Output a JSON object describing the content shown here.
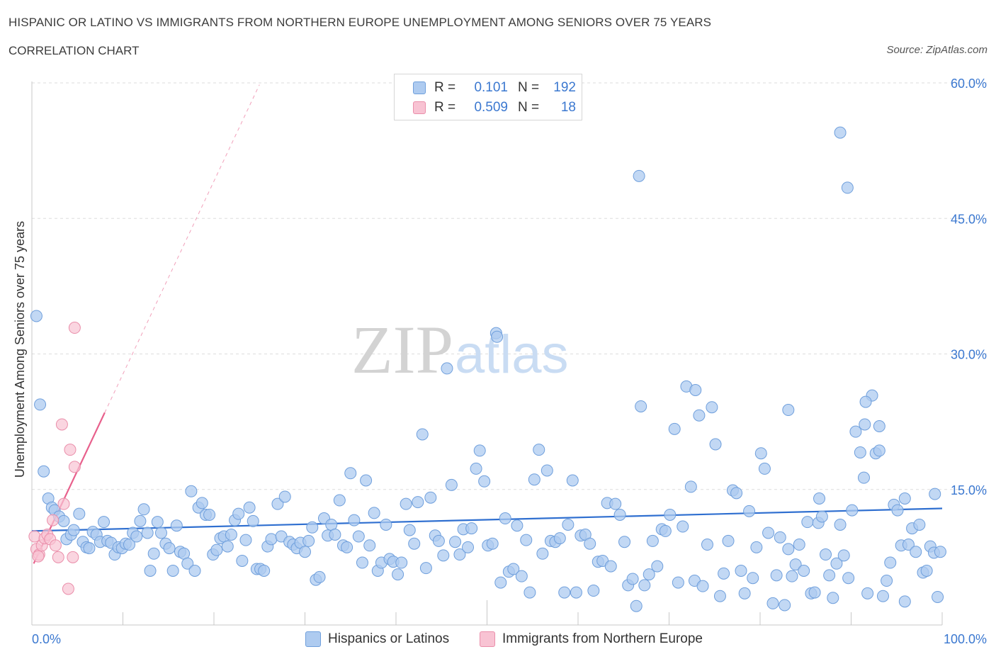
{
  "header": {
    "title": "HISPANIC OR LATINO VS IMMIGRANTS FROM NORTHERN EUROPE UNEMPLOYMENT AMONG SENIORS OVER 75 YEARS",
    "subtitle": "CORRELATION CHART",
    "source": "Source: ZipAtlas.com"
  },
  "watermark": "ZIPatlas",
  "legend": {
    "rows": [
      {
        "r_label": "R =",
        "r_value": "0.101",
        "n_label": "N =",
        "n_value": "192"
      },
      {
        "r_label": "R =",
        "r_value": "0.509",
        "n_label": "N =",
        "n_value": "18"
      }
    ]
  },
  "bottom_legend": {
    "series_a": "Hispanics or Latinos",
    "series_b": "Immigrants from Northern Europe"
  },
  "colors": {
    "blue_fill": "#aecbf0",
    "blue_stroke": "#6f9fdc",
    "blue_line": "#2f6fd0",
    "pink_fill": "#f8c3d3",
    "pink_stroke": "#ea8eaa",
    "pink_line": "#e8608c",
    "axis_text": "#3b78d0",
    "grid": "#dddddd"
  },
  "chart_data": {
    "type": "scatter",
    "title": "HISPANIC OR LATINO VS IMMIGRANTS FROM NORTHERN EUROPE UNEMPLOYMENT AMONG SENIORS OVER 75 YEARS",
    "xlabel": "",
    "ylabel": "Unemployment Among Seniors over 75 years",
    "xlim": [
      0,
      100
    ],
    "ylim": [
      0,
      60
    ],
    "x_tick_labels": [
      "0.0%",
      "100.0%"
    ],
    "y_ticks": [
      15,
      30,
      45,
      60
    ],
    "y_tick_labels": [
      "15.0%",
      "30.0%",
      "45.0%",
      "60.0%"
    ],
    "grid": true,
    "series": [
      {
        "name": "Hispanics or Latinos",
        "R": 0.101,
        "N": 192,
        "trend": {
          "x": [
            0,
            100
          ],
          "y": [
            10.4,
            12.9
          ],
          "dashed_extension": false
        },
        "points": [
          [
            0.5,
            34.2
          ],
          [
            0.9,
            24.4
          ],
          [
            1.3,
            17.0
          ],
          [
            1.8,
            14.0
          ],
          [
            2.2,
            13.0
          ],
          [
            2.5,
            12.7
          ],
          [
            3.0,
            12.0
          ],
          [
            3.5,
            11.5
          ],
          [
            3.8,
            9.5
          ],
          [
            4.3,
            10.0
          ],
          [
            4.6,
            10.5
          ],
          [
            5.2,
            12.3
          ],
          [
            5.6,
            9.2
          ],
          [
            6.0,
            8.6
          ],
          [
            6.3,
            8.5
          ],
          [
            6.7,
            10.3
          ],
          [
            7.1,
            10.0
          ],
          [
            7.5,
            9.2
          ],
          [
            7.9,
            11.4
          ],
          [
            8.3,
            9.3
          ],
          [
            8.7,
            9.1
          ],
          [
            9.1,
            7.8
          ],
          [
            9.5,
            8.6
          ],
          [
            9.9,
            8.5
          ],
          [
            10.3,
            9.0
          ],
          [
            10.7,
            8.9
          ],
          [
            11.1,
            10.2
          ],
          [
            11.5,
            9.8
          ],
          [
            11.9,
            11.5
          ],
          [
            12.3,
            12.8
          ],
          [
            12.7,
            10.2
          ],
          [
            13.0,
            6.0
          ],
          [
            13.4,
            7.9
          ],
          [
            13.8,
            11.4
          ],
          [
            14.2,
            10.2
          ],
          [
            14.7,
            9.0
          ],
          [
            15.1,
            8.5
          ],
          [
            15.5,
            6.0
          ],
          [
            15.9,
            11.0
          ],
          [
            16.3,
            8.1
          ],
          [
            16.7,
            7.9
          ],
          [
            17.1,
            6.8
          ],
          [
            17.5,
            14.8
          ],
          [
            17.9,
            6.0
          ],
          [
            18.3,
            13.0
          ],
          [
            18.7,
            13.5
          ],
          [
            19.1,
            12.2
          ],
          [
            19.5,
            12.2
          ],
          [
            19.9,
            7.8
          ],
          [
            20.3,
            8.3
          ],
          [
            20.7,
            9.6
          ],
          [
            21.1,
            9.8
          ],
          [
            21.5,
            8.7
          ],
          [
            21.9,
            10.0
          ],
          [
            22.3,
            11.6
          ],
          [
            22.7,
            12.3
          ],
          [
            23.1,
            7.1
          ],
          [
            23.5,
            9.4
          ],
          [
            23.9,
            13.0
          ],
          [
            24.3,
            11.5
          ],
          [
            24.7,
            6.2
          ],
          [
            25.1,
            6.2
          ],
          [
            25.5,
            6.0
          ],
          [
            25.9,
            8.7
          ],
          [
            26.3,
            9.5
          ],
          [
            27.0,
            13.4
          ],
          [
            27.4,
            9.8
          ],
          [
            27.8,
            14.2
          ],
          [
            28.3,
            9.2
          ],
          [
            28.7,
            8.9
          ],
          [
            29.1,
            8.5
          ],
          [
            29.5,
            9.1
          ],
          [
            30.0,
            8.1
          ],
          [
            30.4,
            9.3
          ],
          [
            30.8,
            10.8
          ],
          [
            31.2,
            5.0
          ],
          [
            31.6,
            5.3
          ],
          [
            32.1,
            11.8
          ],
          [
            32.5,
            9.9
          ],
          [
            32.9,
            11.1
          ],
          [
            33.3,
            10.0
          ],
          [
            33.8,
            13.8
          ],
          [
            34.2,
            8.8
          ],
          [
            34.6,
            8.6
          ],
          [
            35.0,
            16.8
          ],
          [
            35.4,
            11.6
          ],
          [
            35.9,
            9.8
          ],
          [
            36.3,
            6.9
          ],
          [
            36.7,
            16.0
          ],
          [
            37.1,
            8.8
          ],
          [
            37.6,
            12.4
          ],
          [
            38.0,
            6.0
          ],
          [
            38.4,
            6.9
          ],
          [
            38.9,
            11.1
          ],
          [
            39.3,
            7.3
          ],
          [
            39.7,
            7.0
          ],
          [
            40.2,
            5.6
          ],
          [
            40.6,
            6.9
          ],
          [
            41.1,
            13.4
          ],
          [
            41.5,
            10.5
          ],
          [
            42.0,
            9.0
          ],
          [
            42.4,
            13.6
          ],
          [
            42.9,
            21.1
          ],
          [
            43.3,
            6.3
          ],
          [
            43.8,
            14.1
          ],
          [
            44.3,
            9.9
          ],
          [
            44.7,
            9.3
          ],
          [
            45.2,
            7.7
          ],
          [
            45.6,
            28.4
          ],
          [
            46.1,
            15.5
          ],
          [
            46.5,
            9.2
          ],
          [
            47.0,
            7.8
          ],
          [
            47.4,
            10.6
          ],
          [
            47.9,
            8.6
          ],
          [
            48.3,
            10.7
          ],
          [
            48.8,
            17.3
          ],
          [
            49.2,
            19.3
          ],
          [
            49.7,
            15.9
          ],
          [
            50.1,
            8.8
          ],
          [
            50.6,
            9.0
          ],
          [
            51.0,
            32.3
          ],
          [
            51.5,
            4.7
          ],
          [
            52.0,
            11.8
          ],
          [
            52.4,
            5.9
          ],
          [
            52.9,
            6.2
          ],
          [
            53.3,
            11.0
          ],
          [
            53.8,
            5.4
          ],
          [
            54.3,
            9.4
          ],
          [
            54.7,
            3.6
          ],
          [
            55.2,
            16.1
          ],
          [
            55.7,
            19.4
          ],
          [
            56.1,
            7.9
          ],
          [
            56.6,
            17.1
          ],
          [
            57.0,
            9.3
          ],
          [
            57.5,
            9.2
          ],
          [
            58.0,
            9.6
          ],
          [
            58.5,
            3.6
          ],
          [
            58.9,
            11.1
          ],
          [
            59.4,
            16.0
          ],
          [
            59.8,
            3.6
          ],
          [
            60.3,
            9.9
          ],
          [
            60.8,
            10.0
          ],
          [
            61.3,
            9.0
          ],
          [
            61.7,
            3.8
          ],
          [
            62.2,
            7.0
          ],
          [
            62.7,
            7.1
          ],
          [
            63.2,
            13.5
          ],
          [
            63.6,
            6.5
          ],
          [
            64.1,
            13.4
          ],
          [
            64.6,
            12.2
          ],
          [
            65.1,
            9.2
          ],
          [
            65.5,
            4.4
          ],
          [
            66.0,
            5.1
          ],
          [
            66.4,
            2.1
          ],
          [
            66.9,
            24.2
          ],
          [
            67.3,
            4.4
          ],
          [
            67.8,
            5.6
          ],
          [
            68.2,
            9.3
          ],
          [
            68.7,
            6.5
          ],
          [
            69.2,
            10.6
          ],
          [
            69.6,
            10.4
          ],
          [
            70.1,
            12.2
          ],
          [
            70.6,
            21.7
          ],
          [
            71.0,
            4.7
          ],
          [
            71.5,
            10.9
          ],
          [
            71.9,
            26.4
          ],
          [
            72.4,
            15.3
          ],
          [
            72.8,
            4.9
          ],
          [
            73.3,
            23.2
          ],
          [
            73.7,
            4.3
          ],
          [
            74.2,
            8.9
          ],
          [
            74.7,
            24.1
          ],
          [
            75.1,
            20.0
          ],
          [
            75.6,
            3.2
          ],
          [
            76.0,
            5.7
          ],
          [
            76.5,
            9.3
          ],
          [
            77.0,
            14.9
          ],
          [
            77.4,
            14.6
          ],
          [
            77.9,
            6.0
          ],
          [
            78.3,
            3.5
          ],
          [
            78.8,
            12.6
          ],
          [
            79.2,
            5.2
          ],
          [
            79.6,
            8.6
          ],
          [
            80.1,
            19.0
          ],
          [
            80.5,
            17.3
          ],
          [
            80.9,
            10.2
          ],
          [
            81.4,
            2.4
          ],
          [
            81.8,
            5.5
          ],
          [
            82.2,
            9.7
          ],
          [
            82.7,
            2.2
          ],
          [
            83.1,
            8.4
          ],
          [
            83.5,
            5.4
          ],
          [
            83.9,
            6.7
          ],
          [
            84.3,
            8.9
          ],
          [
            84.8,
            6.0
          ],
          [
            85.2,
            11.4
          ],
          [
            85.6,
            3.5
          ],
          [
            86.0,
            3.6
          ],
          [
            86.4,
            11.3
          ],
          [
            86.8,
            12.0
          ],
          [
            87.2,
            7.8
          ],
          [
            87.6,
            5.5
          ],
          [
            88.0,
            3.0
          ],
          [
            88.4,
            6.8
          ],
          [
            88.8,
            11.1
          ],
          [
            89.2,
            7.7
          ],
          [
            89.7,
            5.2
          ],
          [
            90.1,
            12.7
          ],
          [
            90.5,
            21.4
          ],
          [
            91.0,
            19.1
          ],
          [
            91.4,
            16.3
          ],
          [
            91.8,
            3.5
          ],
          [
            92.3,
            25.4
          ],
          [
            92.7,
            19.0
          ],
          [
            93.1,
            19.3
          ],
          [
            93.5,
            3.2
          ],
          [
            93.9,
            4.9
          ],
          [
            94.3,
            6.9
          ],
          [
            94.7,
            13.3
          ],
          [
            95.1,
            12.7
          ],
          [
            95.5,
            8.8
          ],
          [
            95.9,
            2.6
          ],
          [
            96.3,
            8.9
          ],
          [
            96.7,
            10.7
          ],
          [
            97.1,
            8.1
          ],
          [
            97.5,
            11.1
          ],
          [
            97.9,
            5.8
          ],
          [
            98.3,
            6.0
          ],
          [
            98.7,
            8.7
          ],
          [
            99.1,
            8.0
          ],
          [
            99.5,
            3.1
          ],
          [
            99.8,
            8.1
          ],
          [
            88.8,
            54.5
          ],
          [
            89.6,
            48.4
          ],
          [
            66.7,
            49.7
          ],
          [
            51.1,
            31.9
          ],
          [
            72.9,
            26.0
          ],
          [
            83.1,
            23.8
          ],
          [
            91.6,
            24.7
          ],
          [
            93.1,
            22.0
          ],
          [
            91.5,
            22.2
          ],
          [
            86.5,
            14.0
          ],
          [
            95.9,
            14.0
          ],
          [
            99.2,
            14.5
          ]
        ]
      },
      {
        "name": "Immigrants from Northern Europe",
        "R": 0.509,
        "N": 18,
        "trend": {
          "x": [
            0.2,
            8.0
          ],
          "y": [
            6.8,
            23.5
          ],
          "dashed_extension": {
            "x": [
              8.0,
              25.0
            ],
            "y": [
              23.5,
              59.8
            ]
          }
        },
        "points": [
          [
            0.3,
            9.8
          ],
          [
            0.5,
            8.4
          ],
          [
            0.8,
            7.8
          ],
          [
            1.1,
            8.8
          ],
          [
            1.4,
            9.6
          ],
          [
            1.7,
            10.0
          ],
          [
            2.0,
            9.5
          ],
          [
            2.3,
            11.6
          ],
          [
            2.6,
            8.8
          ],
          [
            2.9,
            7.5
          ],
          [
            3.5,
            13.4
          ],
          [
            3.3,
            22.2
          ],
          [
            4.2,
            19.4
          ],
          [
            4.5,
            7.5
          ],
          [
            4.0,
            4.0
          ],
          [
            4.7,
            17.5
          ],
          [
            4.7,
            32.9
          ],
          [
            0.7,
            7.6
          ]
        ]
      }
    ]
  }
}
